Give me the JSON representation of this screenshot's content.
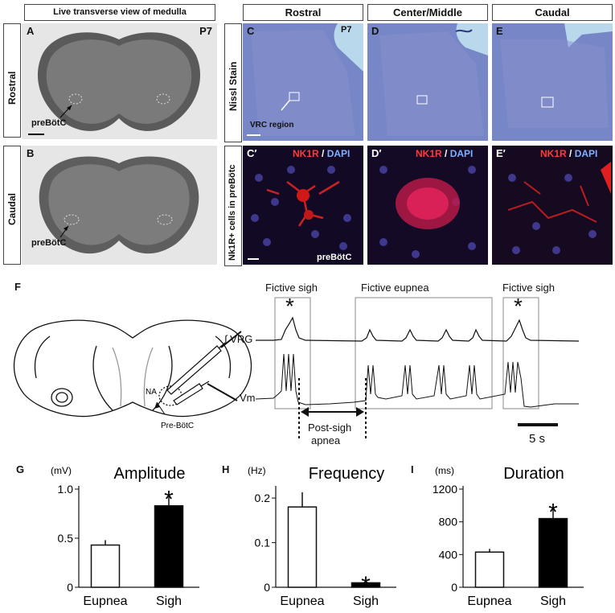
{
  "live_view": {
    "header": "Live transverse view of medulla",
    "label_rostral": "Rostral",
    "label_caudal": "Caudal",
    "panel_a": "A",
    "panel_b": "B",
    "age": "P7",
    "prebotc": "preBötC"
  },
  "nissl": {
    "col_rostral": "Rostral",
    "col_middle": "Center/Middle",
    "col_caudal": "Caudal",
    "side_label": "Nissl Stain",
    "panel_c": "C",
    "panel_d": "D",
    "panel_e": "E",
    "age": "P7",
    "vrc": "VRC region"
  },
  "nk1r": {
    "side_label": "Nk1R+ cells in preBötc",
    "panel_c": "C′",
    "panel_d": "D′",
    "panel_e": "E′",
    "marker": "NK1R",
    "slash": " / ",
    "dapi": "DAPI",
    "prebotc": "preBötC"
  },
  "recording": {
    "panel": "F",
    "fictive_sigh_1": "Fictive sigh",
    "fictive_eupnea": "Fictive eupnea",
    "fictive_sigh_2": "Fictive sigh",
    "vrg": "∫ VRG",
    "vm": "Vm",
    "post_sigh": "Post-sigh",
    "apnea": "apnea",
    "scale": "5 s",
    "na": "NA",
    "pre_botc": "Pre-BötC",
    "star": "*"
  },
  "chart_data": [
    {
      "type": "bar",
      "panel": "G",
      "title": "Amplitude",
      "unit": "(mV)",
      "categories": [
        "Eupnea",
        "Sigh"
      ],
      "values": [
        0.43,
        0.83
      ],
      "errors": [
        0.05,
        0.1
      ],
      "ylim": [
        0,
        1.0
      ],
      "ticks": [
        "0",
        "0.5",
        "1.0"
      ],
      "tick_values": [
        0,
        0.5,
        1.0
      ],
      "fills": [
        "#ffffff",
        "#000000"
      ],
      "significance": [
        false,
        true
      ],
      "star": "*"
    },
    {
      "type": "bar",
      "panel": "H",
      "title": "Frequency",
      "unit": "(Hz)",
      "categories": [
        "Eupnea",
        "Sigh"
      ],
      "values": [
        0.18,
        0.01
      ],
      "errors": [
        0.033,
        0.003
      ],
      "ylim": [
        0,
        0.22
      ],
      "ticks": [
        "0",
        "0.1",
        "0.2"
      ],
      "tick_values": [
        0,
        0.1,
        0.2
      ],
      "fills": [
        "#ffffff",
        "#000000"
      ],
      "significance": [
        false,
        true
      ],
      "star": "*"
    },
    {
      "type": "bar",
      "panel": "I",
      "title": "Duration",
      "unit": "(ms)",
      "categories": [
        "Eupnea",
        "Sigh"
      ],
      "values": [
        430,
        840
      ],
      "errors": [
        40,
        120
      ],
      "ylim": [
        0,
        1200
      ],
      "ticks": [
        "0",
        "400",
        "800",
        "1200"
      ],
      "tick_values": [
        0,
        400,
        800,
        1200
      ],
      "fills": [
        "#ffffff",
        "#000000"
      ],
      "significance": [
        false,
        true
      ],
      "star": "*"
    }
  ]
}
